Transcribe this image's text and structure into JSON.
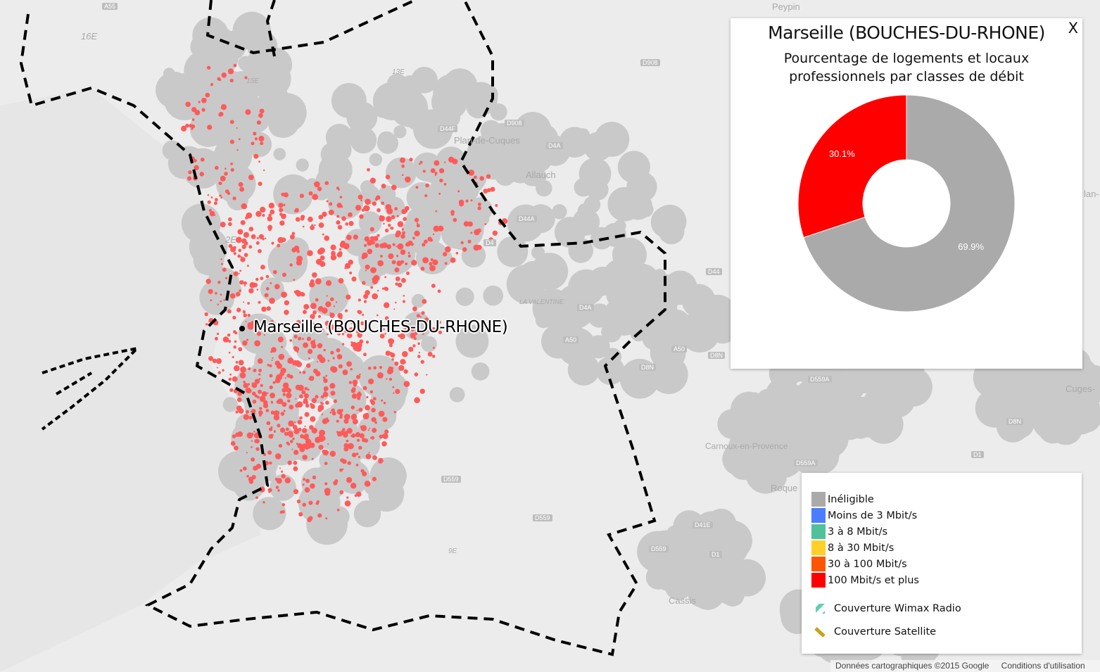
{
  "map": {
    "place_labels": [
      "Peypin",
      "Plan-de-Cuques",
      "Allauch",
      "Carnoux-en-Provence",
      "Cassis",
      "Roque",
      "Cuges-",
      "lan-",
      "LA VALENTINE",
      "16E",
      "13E",
      "15E",
      "2E",
      "9E"
    ],
    "road_labels": [
      "A55",
      "D908",
      "D908",
      "D44F",
      "D4A",
      "D4A",
      "D44A",
      "D4",
      "A50",
      "A50",
      "D8N",
      "D8N",
      "D559A",
      "D559A",
      "D559",
      "D559",
      "D559",
      "D41E",
      "D1",
      "D1",
      "D8N",
      "D44"
    ],
    "selected_commune_label": "Marseille (BOUCHES-DU-RHONE)",
    "colors": {
      "land": "#ececec",
      "urban": "#c9c9c9",
      "eligible_dots": "#ff5a5a",
      "boundary": "#000000"
    }
  },
  "panel": {
    "title": "Marseille (BOUCHES-DU-RHONE)",
    "subtitle": "Pourcentage de logements et locaux professionnels par classes de débit",
    "close_label": "X"
  },
  "chart_data": {
    "type": "pie",
    "donut": true,
    "title": "Marseille (BOUCHES-DU-RHONE)",
    "subtitle": "Pourcentage de logements et locaux professionnels par classes de débit",
    "slices": [
      {
        "name": "Inéligible",
        "value": 69.9,
        "label": "69.9%",
        "color": "#aaaaaa"
      },
      {
        "name": "100 Mbit/s et plus",
        "value": 30.1,
        "label": "30.1%",
        "color": "#ff0000"
      }
    ]
  },
  "legend": {
    "items": [
      {
        "label": "Inéligible",
        "color": "#aaaaaa"
      },
      {
        "label": "Moins de 3 Mbit/s",
        "color": "#4a7dff"
      },
      {
        "label": "3 à 8 Mbit/s",
        "color": "#4fc29c"
      },
      {
        "label": "8 à 30 Mbit/s",
        "color": "#ffd02a"
      },
      {
        "label": "30 à 100 Mbit/s",
        "color": "#ff5500"
      },
      {
        "label": "100 Mbit/s et plus",
        "color": "#ff0000"
      }
    ],
    "coverage": [
      {
        "label": "Couverture Wimax Radio",
        "icon": "wimax-hatch-icon",
        "color": "#5fd0ad"
      },
      {
        "label": "Couverture Satellite",
        "icon": "satellite-hatch-icon",
        "color": "#c9a21a"
      }
    ]
  },
  "attribution": {
    "data": "Données cartographiques ©2015 Google",
    "terms": "Conditions d'utilisation"
  }
}
